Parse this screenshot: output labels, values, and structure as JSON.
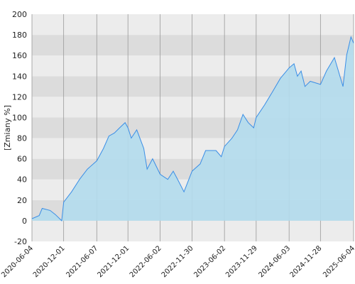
{
  "chart_data": {
    "type": "area",
    "y_label": "[Zmiany %]",
    "x": [
      "2020-06-04",
      "2020-07-15",
      "2020-08-01",
      "2020-09-15",
      "2020-10-15",
      "2020-11-20",
      "2020-12-01",
      "2021-01-15",
      "2021-03-01",
      "2021-04-15",
      "2021-06-07",
      "2021-07-15",
      "2021-08-15",
      "2021-09-15",
      "2021-10-15",
      "2021-11-15",
      "2021-12-01",
      "2021-12-20",
      "2022-01-20",
      "2022-03-01",
      "2022-03-20",
      "2022-04-20",
      "2022-06-02",
      "2022-07-15",
      "2022-08-15",
      "2022-09-15",
      "2022-10-15",
      "2022-11-30",
      "2023-01-15",
      "2023-02-15",
      "2023-04-15",
      "2023-05-15",
      "2023-06-02",
      "2023-07-15",
      "2023-08-15",
      "2023-09-15",
      "2023-10-15",
      "2023-11-15",
      "2023-11-29",
      "2024-01-15",
      "2024-03-01",
      "2024-04-15",
      "2024-06-03",
      "2024-07-01",
      "2024-07-20",
      "2024-08-10",
      "2024-09-01",
      "2024-10-01",
      "2024-11-28",
      "2025-01-01",
      "2025-02-15",
      "2025-03-15",
      "2025-04-05",
      "2025-04-25",
      "2025-05-20",
      "2025-06-04"
    ],
    "values": [
      2,
      5,
      12,
      10,
      6,
      0,
      18,
      28,
      40,
      50,
      58,
      70,
      82,
      85,
      90,
      95,
      90,
      80,
      88,
      70,
      50,
      60,
      45,
      40,
      48,
      38,
      28,
      48,
      55,
      68,
      68,
      62,
      72,
      80,
      88,
      103,
      95,
      90,
      100,
      112,
      125,
      138,
      148,
      152,
      140,
      145,
      130,
      135,
      132,
      145,
      158,
      142,
      130,
      160,
      178,
      172
    ],
    "line_color": "#3a8ee6",
    "fill_color": "#b3dbed",
    "xlim": [
      "2020-06-04",
      "2025-06-04"
    ],
    "xticks": [
      "2020-06-04",
      "2020-12-01",
      "2021-06-07",
      "2021-12-01",
      "2022-06-02",
      "2022-11-30",
      "2023-06-02",
      "2023-11-29",
      "2024-06-03",
      "2024-11-28",
      "2025-06-04"
    ],
    "ylim": [
      -20,
      200
    ],
    "yticks": [
      -20,
      0,
      20,
      40,
      60,
      80,
      100,
      120,
      140,
      160,
      180,
      200
    ],
    "grid": true
  }
}
